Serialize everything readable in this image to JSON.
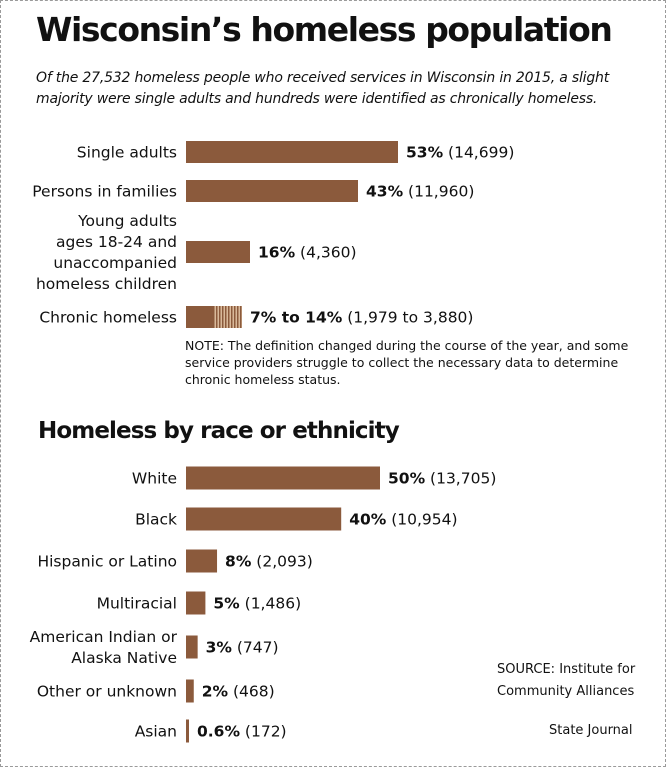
{
  "header": {
    "title": "Wisconsin’s homeless population",
    "subtitle": "Of the 27,532 homeless people who received services in Wisconsin in 2015, a slight majority were single adults and hundreds were identified as chronically homeless."
  },
  "note": "NOTE: The definition changed during the course of the year, and some service providers struggle to collect the necessary data to determine chronic homeless status.",
  "section2": {
    "title": "Homeless by race or ethnicity"
  },
  "footer": {
    "source": "SOURCE: Institute for Community Alliances",
    "credit": "State Journal"
  },
  "colors": {
    "bar": "#8b5a3c",
    "hatch": "#d9b99a",
    "text": "#111111"
  },
  "chart_data": [
    {
      "type": "bar",
      "orientation": "horizontal",
      "categories": [
        [
          "Single adults"
        ],
        [
          "Persons in families"
        ],
        [
          "Young adults",
          "ages 18-24 and",
          "unaccompanied",
          "homeless children"
        ],
        [
          "Chronic homeless"
        ]
      ],
      "values": [
        53,
        43,
        16,
        7
      ],
      "range_high": [
        null,
        null,
        null,
        14
      ],
      "value_labels": [
        "53%",
        "43%",
        "16%",
        "7% to 14%"
      ],
      "count_labels": [
        "(14,699)",
        "(11,960)",
        "(4,360)",
        "(1,979 to 3,880)"
      ],
      "unit": "percent"
    },
    {
      "type": "bar",
      "orientation": "horizontal",
      "categories": [
        [
          "White"
        ],
        [
          "Black"
        ],
        [
          "Hispanic or Latino"
        ],
        [
          "Multiracial"
        ],
        [
          "American Indian or",
          "Alaska Native"
        ],
        [
          "Other or unknown"
        ],
        [
          "Asian"
        ]
      ],
      "values": [
        50,
        40,
        8,
        5,
        3,
        2,
        0.6
      ],
      "value_labels": [
        "50%",
        "40%",
        "8%",
        "5%",
        "3%",
        "2%",
        "0.6%"
      ],
      "count_labels": [
        "(13,705)",
        "(10,954)",
        "(2,093)",
        "(1,486)",
        "(747)",
        "(468)",
        "(172)"
      ],
      "unit": "percent"
    }
  ]
}
